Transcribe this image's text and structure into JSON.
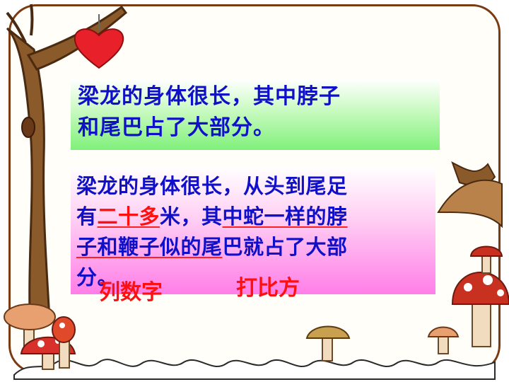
{
  "box1": {
    "line1": "梁龙的身体很长，其中脖子",
    "line2": "和尾巴占了大部分。"
  },
  "box2": {
    "line1": "梁龙的身体很长，从头到尾足",
    "line2_a": "有",
    "line2_b": "二十多",
    "line2_c": "米，其",
    "line2_d": "中蛇一样的脖",
    "line3_a": "子和鞭子似的尾",
    "line3_b": "巴就占了大部",
    "line4": "分。"
  },
  "annotations": {
    "list_numbers": "列数字",
    "comparison": "打比方"
  },
  "colors": {
    "text_blue": "#1010c8",
    "annotation_red": "#ff1010",
    "frame_brown": "#7a3a12",
    "heart_red": "#e8202a"
  }
}
